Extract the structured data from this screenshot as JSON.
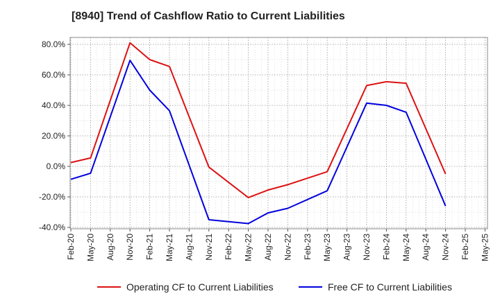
{
  "chart_data": {
    "type": "line",
    "title": "[8940]  Trend of Cashflow Ratio to Current Liabilities",
    "xlabel": "",
    "ylabel": "",
    "ylim": [
      -40,
      85
    ],
    "yticks": [
      80,
      60,
      40,
      20,
      0,
      -20,
      -40
    ],
    "ytick_labels": [
      "80.0%",
      "60.0%",
      "40.0%",
      "20.0%",
      "0.0%",
      "-20.0%",
      "-40.0%"
    ],
    "categories": [
      "Feb-20",
      "May-20",
      "Aug-20",
      "Nov-20",
      "Feb-21",
      "May-21",
      "Aug-21",
      "Nov-21",
      "Feb-22",
      "May-22",
      "Aug-22",
      "Nov-22",
      "Feb-23",
      "May-23",
      "Aug-23",
      "Nov-23",
      "Feb-24",
      "May-24",
      "Aug-24",
      "Nov-24",
      "Feb-25",
      "May-25"
    ],
    "grid": true,
    "legend_position": "bottom",
    "series": [
      {
        "name": "Operating CF to Current Liabilities",
        "color": "#dd1111",
        "values": [
          2.5,
          5.5,
          null,
          81.0,
          70.0,
          65.5,
          null,
          -0.5,
          null,
          -20.5,
          -15.5,
          -12.0,
          null,
          -3.5,
          null,
          53.0,
          55.5,
          54.5,
          null,
          -5.0,
          null,
          null
        ]
      },
      {
        "name": "Free CF to Current Liabilities",
        "color": "#0000dd",
        "values": [
          -8.5,
          -4.5,
          null,
          69.5,
          50.0,
          36.5,
          null,
          -35.0,
          null,
          -37.5,
          -30.5,
          -27.5,
          null,
          -16.0,
          null,
          41.5,
          40.0,
          35.5,
          null,
          -26.0,
          null,
          null
        ]
      }
    ]
  }
}
